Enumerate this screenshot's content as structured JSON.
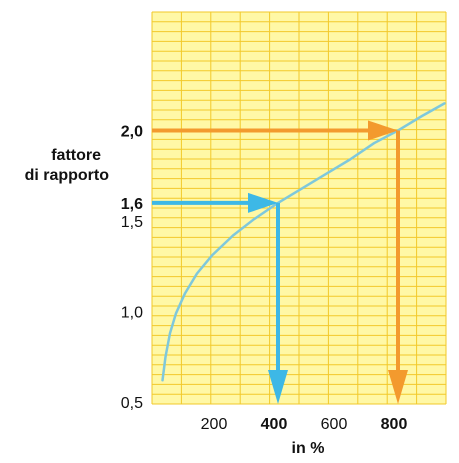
{
  "chart_data": {
    "type": "line",
    "title": "",
    "xlabel": "in %",
    "ylabel": "fattore di rapporto",
    "ylabel_lines": [
      "fattore",
      "di rapporto"
    ],
    "xlim": [
      0,
      1000
    ],
    "ylim": [
      0.5,
      2.2
    ],
    "grid": true,
    "x_ticks": [
      {
        "value": 200,
        "label": "200"
      },
      {
        "value": 400,
        "label": "400"
      },
      {
        "value": 600,
        "label": "600"
      },
      {
        "value": 800,
        "label": "800"
      }
    ],
    "y_ticks": [
      {
        "value": 0.5,
        "label": "0,5"
      },
      {
        "value": 1.0,
        "label": "1,0"
      },
      {
        "value": 1.5,
        "label": "1,5"
      },
      {
        "value": 1.6,
        "label": "1,6"
      },
      {
        "value": 2.0,
        "label": "2,0"
      }
    ],
    "series": [
      {
        "color": "#7ec8dc",
        "points": [
          [
            15,
            0.62
          ],
          [
            25,
            0.75
          ],
          [
            40,
            0.88
          ],
          [
            60,
            0.99
          ],
          [
            90,
            1.1
          ],
          [
            130,
            1.21
          ],
          [
            180,
            1.31
          ],
          [
            250,
            1.42
          ],
          [
            320,
            1.51
          ],
          [
            400,
            1.6
          ],
          [
            480,
            1.68
          ],
          [
            560,
            1.76
          ],
          [
            640,
            1.84
          ],
          [
            720,
            1.93
          ],
          [
            800,
            2.0
          ],
          [
            880,
            2.08
          ],
          [
            955,
            2.15
          ]
        ]
      }
    ],
    "annotations": [
      {
        "x": 400,
        "y": 1.6,
        "color": "#3db8e6",
        "highlight_tick_x": "400",
        "highlight_tick_y": "1,6"
      },
      {
        "x": 800,
        "y": 2.0,
        "color": "#f39a2e",
        "highlight_tick_x": "800",
        "highlight_tick_y": "2,0"
      }
    ],
    "colors": {
      "background": "#fff8a6",
      "grid": "#f2c92a",
      "curve": "#7ec8dc",
      "blue": "#3db8e6",
      "orange": "#f39a2e"
    }
  }
}
